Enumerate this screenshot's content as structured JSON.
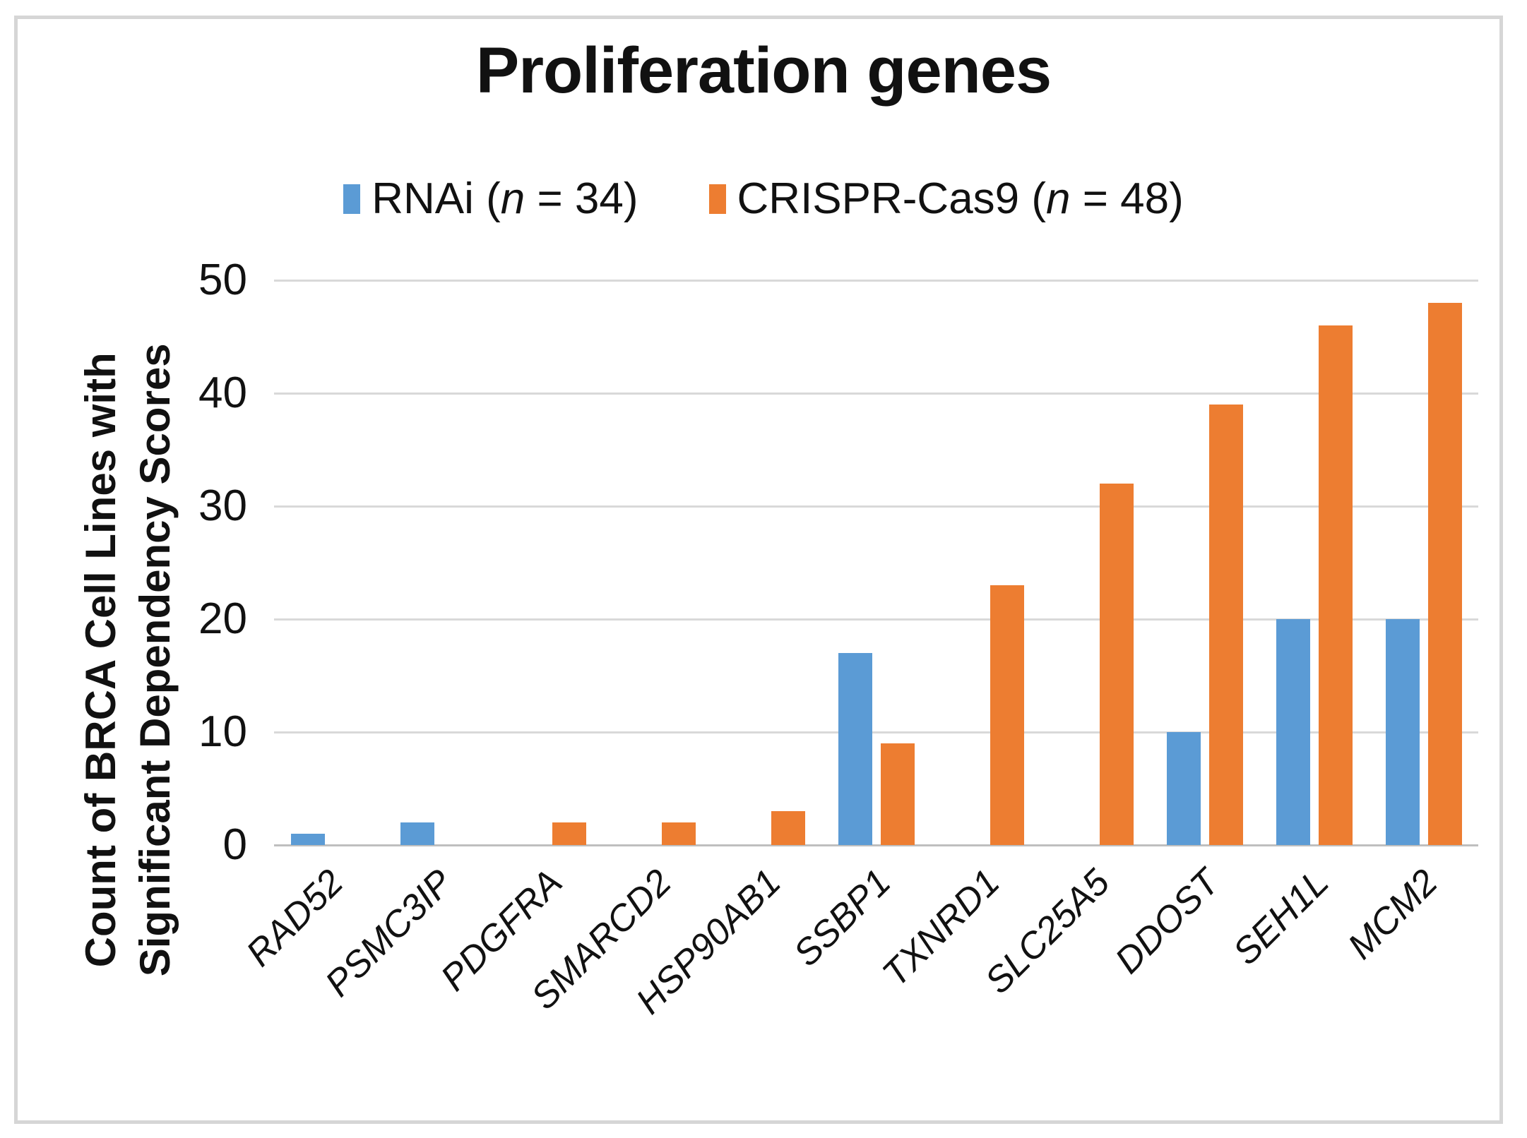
{
  "chart_data": {
    "type": "bar",
    "title": "Proliferation genes",
    "categories": [
      "RAD52",
      "PSMC3IP",
      "PDGFRA",
      "SMARCD2",
      "HSP90AB1",
      "SSBP1",
      "TXNRD1",
      "SLC25A5",
      "DDOST",
      "SEH1L",
      "MCM2"
    ],
    "series": [
      {
        "name": "RNAi (n = 34)",
        "color": "#5B9BD5",
        "values": [
          1,
          2,
          0,
          0,
          0,
          17,
          0,
          0,
          10,
          20,
          20
        ]
      },
      {
        "name": "CRISPR-Cas9 (n = 48)",
        "color": "#ED7D31",
        "values": [
          0,
          0,
          2,
          2,
          3,
          9,
          23,
          32,
          39,
          46,
          48
        ]
      }
    ],
    "ylabel_lines": [
      "Count of BRCA Cell Lines with",
      "Significant Dependency Scores"
    ],
    "xlabel": "",
    "yticks": [
      0,
      10,
      20,
      30,
      40,
      50
    ],
    "ylim": [
      0,
      50
    ],
    "grid": true,
    "legend_position": "top-center",
    "x_tick_style": "italic, rotated 45deg"
  },
  "colors": {
    "rnai_blue": "#5B9BD5",
    "crispr_orange": "#ED7D31",
    "gridline": "#D9D9D9",
    "axis_line": "#BFBFBF",
    "frame_border": "#D6D6D6",
    "text": "#111111"
  }
}
